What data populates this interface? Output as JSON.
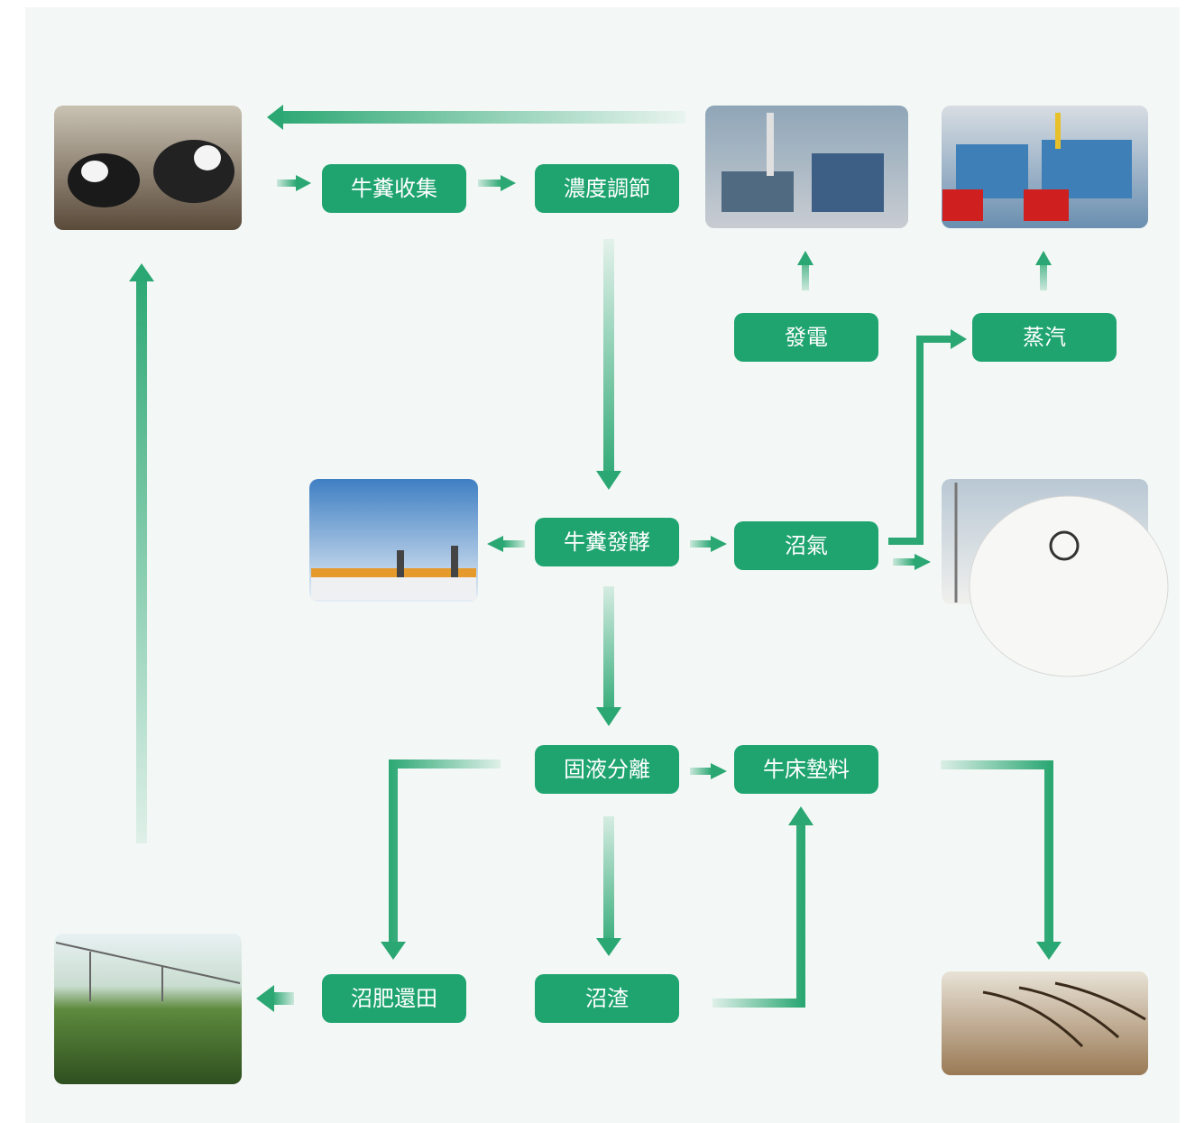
{
  "nodes": [
    {
      "label": "牛糞收集"
    },
    {
      "label": "濃度調節"
    },
    {
      "label": "發電"
    },
    {
      "label": "蒸汽"
    },
    {
      "label": "牛糞發酵"
    },
    {
      "label": "沼氣"
    },
    {
      "label": "固液分離"
    },
    {
      "label": "牛床墊料"
    },
    {
      "label": "沼肥還田"
    },
    {
      "label": "沼渣"
    }
  ]
}
